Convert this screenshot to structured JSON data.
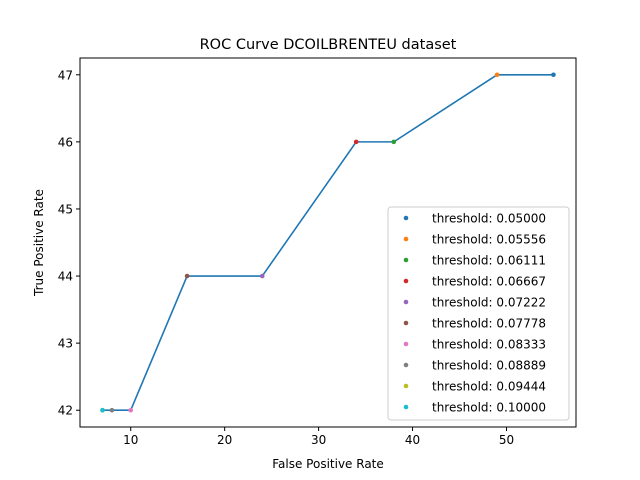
{
  "chart_data": {
    "type": "line",
    "title": "ROC Curve DCOILBRENTEU dataset",
    "xlabel": "False Positive Rate",
    "ylabel": "True Positive Rate",
    "xlim": [
      4.6,
      57.4
    ],
    "ylim": [
      41.75,
      47.25
    ],
    "x_ticks": [
      10,
      20,
      30,
      40,
      50
    ],
    "y_ticks": [
      42,
      43,
      44,
      45,
      46,
      47
    ],
    "grid": false,
    "legend_position": "lower right",
    "line_color": "#1f77b4",
    "curve": [
      {
        "x": 7,
        "y": 42
      },
      {
        "x": 8,
        "y": 42
      },
      {
        "x": 10,
        "y": 42
      },
      {
        "x": 16,
        "y": 44
      },
      {
        "x": 24,
        "y": 44
      },
      {
        "x": 34,
        "y": 46
      },
      {
        "x": 38,
        "y": 46
      },
      {
        "x": 49,
        "y": 47
      },
      {
        "x": 55,
        "y": 47
      }
    ],
    "series": [
      {
        "name": "threshold: 0.05000",
        "color": "#1f77b4",
        "x": 55,
        "y": 47
      },
      {
        "name": "threshold: 0.05556",
        "color": "#ff7f0e",
        "x": 49,
        "y": 47
      },
      {
        "name": "threshold: 0.06111",
        "color": "#2ca02c",
        "x": 38,
        "y": 46
      },
      {
        "name": "threshold: 0.06667",
        "color": "#d62728",
        "x": 34,
        "y": 46
      },
      {
        "name": "threshold: 0.07222",
        "color": "#9467bd",
        "x": 24,
        "y": 44
      },
      {
        "name": "threshold: 0.07778",
        "color": "#8c564b",
        "x": 16,
        "y": 44
      },
      {
        "name": "threshold: 0.08333",
        "color": "#e377c2",
        "x": 10,
        "y": 42
      },
      {
        "name": "threshold: 0.08889",
        "color": "#7f7f7f",
        "x": 8,
        "y": 42
      },
      {
        "name": "threshold: 0.09444",
        "color": "#bcbd22",
        "x": 7,
        "y": 42
      },
      {
        "name": "threshold: 0.10000",
        "color": "#17becf",
        "x": 7,
        "y": 42
      }
    ]
  }
}
